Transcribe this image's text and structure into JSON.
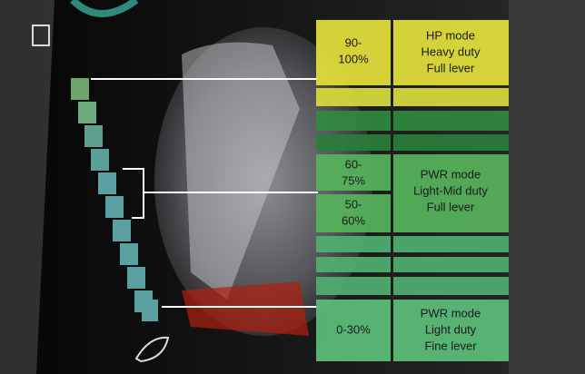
{
  "panels": [
    {
      "ranges": [
        [
          "90-",
          "100%"
        ]
      ],
      "description": [
        "HP mode",
        "Heavy duty",
        "Full lever"
      ]
    },
    {
      "ranges": [
        [
          "60-",
          "75%"
        ],
        [
          "50-",
          "60%"
        ]
      ],
      "description": [
        "PWR mode",
        "Light-Mid duty",
        "Full lever"
      ]
    },
    {
      "ranges": [
        [
          "0-30%"
        ]
      ],
      "description": [
        "PWR mode",
        "Light duty",
        "Fine lever"
      ]
    }
  ]
}
